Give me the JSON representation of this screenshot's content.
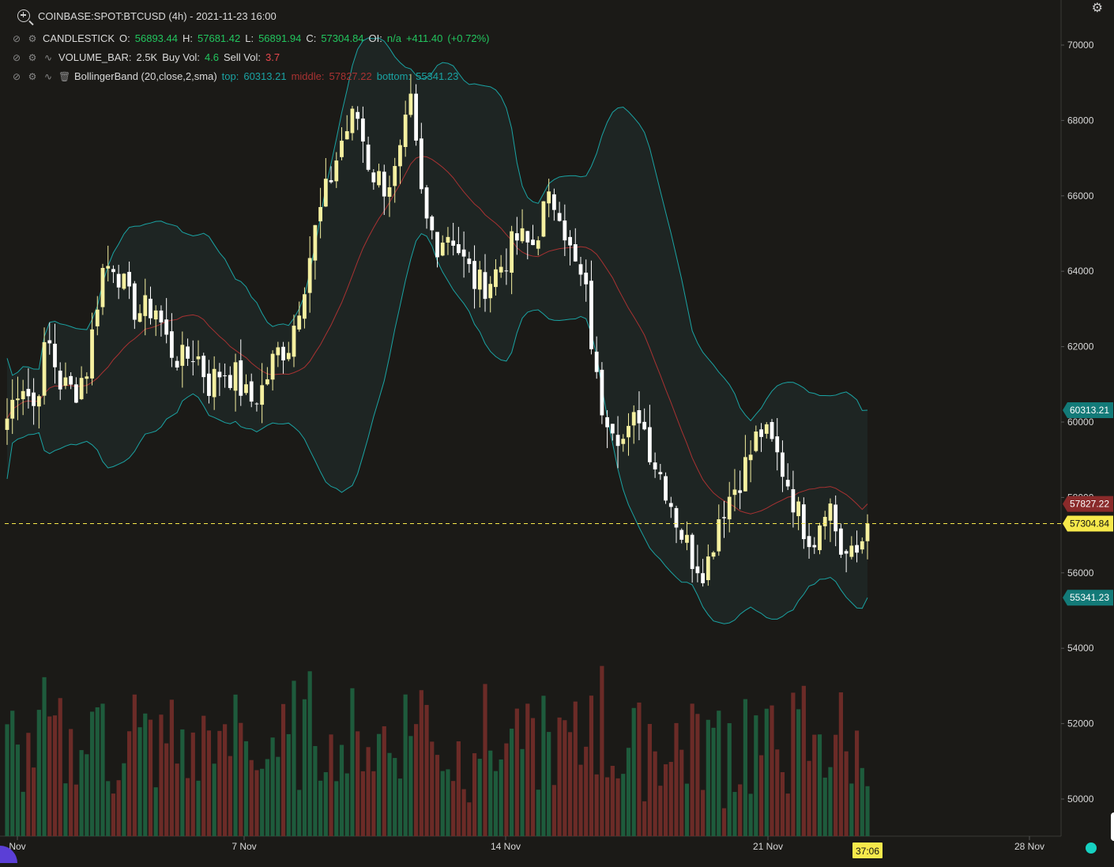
{
  "header": {
    "symbol_line": "COINBASE:SPOT:BTCUSD (4h) - 2021-11-23 16:00"
  },
  "legend": {
    "candlestick": {
      "name": "CANDLESTICK",
      "o_label": "O:",
      "o": "56893.44",
      "h_label": "H:",
      "h": "57681.42",
      "l_label": "L:",
      "l": "56891.94",
      "c_label": "C:",
      "c": "57304.84",
      "oi_label": "OI:",
      "oi": "n/a",
      "change": "+411.40",
      "change_pct": "(+0.72%)"
    },
    "volume": {
      "name": "VOLUME_BAR:",
      "value": "2.5K",
      "buy_label": "Buy Vol:",
      "buy": "4.6",
      "sell_label": "Sell Vol:",
      "sell": "3.7"
    },
    "bollinger": {
      "name": "BollingerBand (20,close,2,sma)",
      "top_label": "top:",
      "top": "60313.21",
      "middle_label": "middle:",
      "middle": "57827.22",
      "bottom_label": "bottom:",
      "bottom": "55341.23"
    }
  },
  "colors": {
    "background": "#1b1a17",
    "up_candle": "#f5f0a0",
    "down_candle": "#ffffff",
    "bb_band": "#1aa3a3",
    "bb_middle": "#a83232",
    "volume_up": "#1e5b3c",
    "volume_down": "#6b2b27",
    "last_price": "#f7e94b"
  },
  "badges": {
    "top": "60313.21",
    "middle": "57827.22",
    "last": "57304.84",
    "bottom": "55341.23",
    "countdown": "37:06"
  },
  "chart_data": {
    "type": "candlestick",
    "timeframe": "4h",
    "x_tick_labels": [
      "Nov",
      "7 Nov",
      "14 Nov",
      "21 Nov",
      "28 Nov"
    ],
    "y_tick_labels": [
      "70000",
      "68000",
      "66000",
      "64000",
      "62000",
      "60000",
      "58000",
      "56000",
      "54000",
      "52000",
      "50000"
    ],
    "ylim": [
      49000,
      71200
    ],
    "last_price": 57304.84,
    "bollinger_current": {
      "top": 60313.21,
      "middle": 57827.22,
      "bottom": 55341.23
    },
    "close_sequence_sample": [
      60100,
      61200,
      60400,
      62200,
      61000,
      60800,
      61500,
      64000,
      64300,
      63200,
      62900,
      63100,
      62000,
      61600,
      61900,
      61000,
      61400,
      61200,
      60500,
      60900,
      61800,
      62100,
      63600,
      65200,
      66400,
      67600,
      68200,
      66700,
      66300,
      66600,
      68400,
      65400,
      64800,
      65100,
      64200,
      63600,
      63800,
      64300,
      64900,
      64600,
      65700,
      65900,
      64300,
      63500,
      60600,
      60100,
      59400,
      60300,
      59100,
      58300,
      57200,
      56400,
      56100,
      57600,
      58200,
      58900,
      59800,
      59300,
      58500,
      57400,
      56900,
      58100,
      56600,
      56300,
      57304.84
    ]
  }
}
